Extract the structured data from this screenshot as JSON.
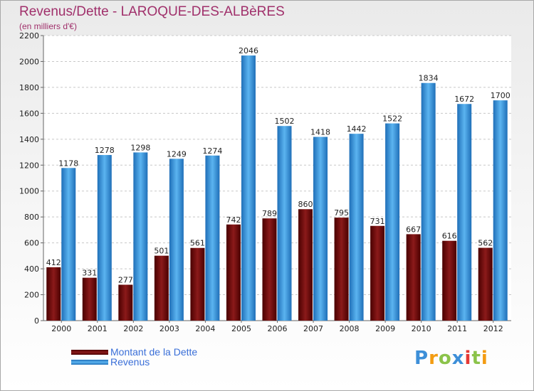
{
  "header": {
    "title": "Revenus/Dette - LAROQUE-DES-ALBèRES",
    "subtitle": "(en milliers d'€)"
  },
  "chart_data": {
    "type": "bar",
    "categories": [
      "2000",
      "2001",
      "2002",
      "2003",
      "2004",
      "2005",
      "2006",
      "2007",
      "2008",
      "2009",
      "2010",
      "2011",
      "2012"
    ],
    "series": [
      {
        "name": "Montant de la Dette",
        "color": "#7a1414",
        "values": [
          412,
          331,
          277,
          501,
          561,
          742,
          789,
          860,
          795,
          731,
          667,
          616,
          562
        ]
      },
      {
        "name": "Revenus",
        "color": "#3d9ee8",
        "values": [
          1178,
          1278,
          1298,
          1249,
          1274,
          2046,
          1502,
          1418,
          1442,
          1522,
          1834,
          1672,
          1700
        ]
      }
    ],
    "ylim": [
      0,
      2200
    ],
    "yticks": [
      0,
      200,
      400,
      600,
      800,
      1000,
      1200,
      1400,
      1600,
      1800,
      2000,
      2200
    ],
    "grid": true,
    "legend_position": "bottom-left"
  },
  "logo": {
    "letters": [
      "P",
      "r",
      "o",
      "x",
      "i",
      "t",
      "i"
    ],
    "colors": [
      "#3d8fd8",
      "#f39c12",
      "#8bc34a",
      "#3d8fd8",
      "#e53935",
      "#8bc34a",
      "#f39c12"
    ]
  }
}
